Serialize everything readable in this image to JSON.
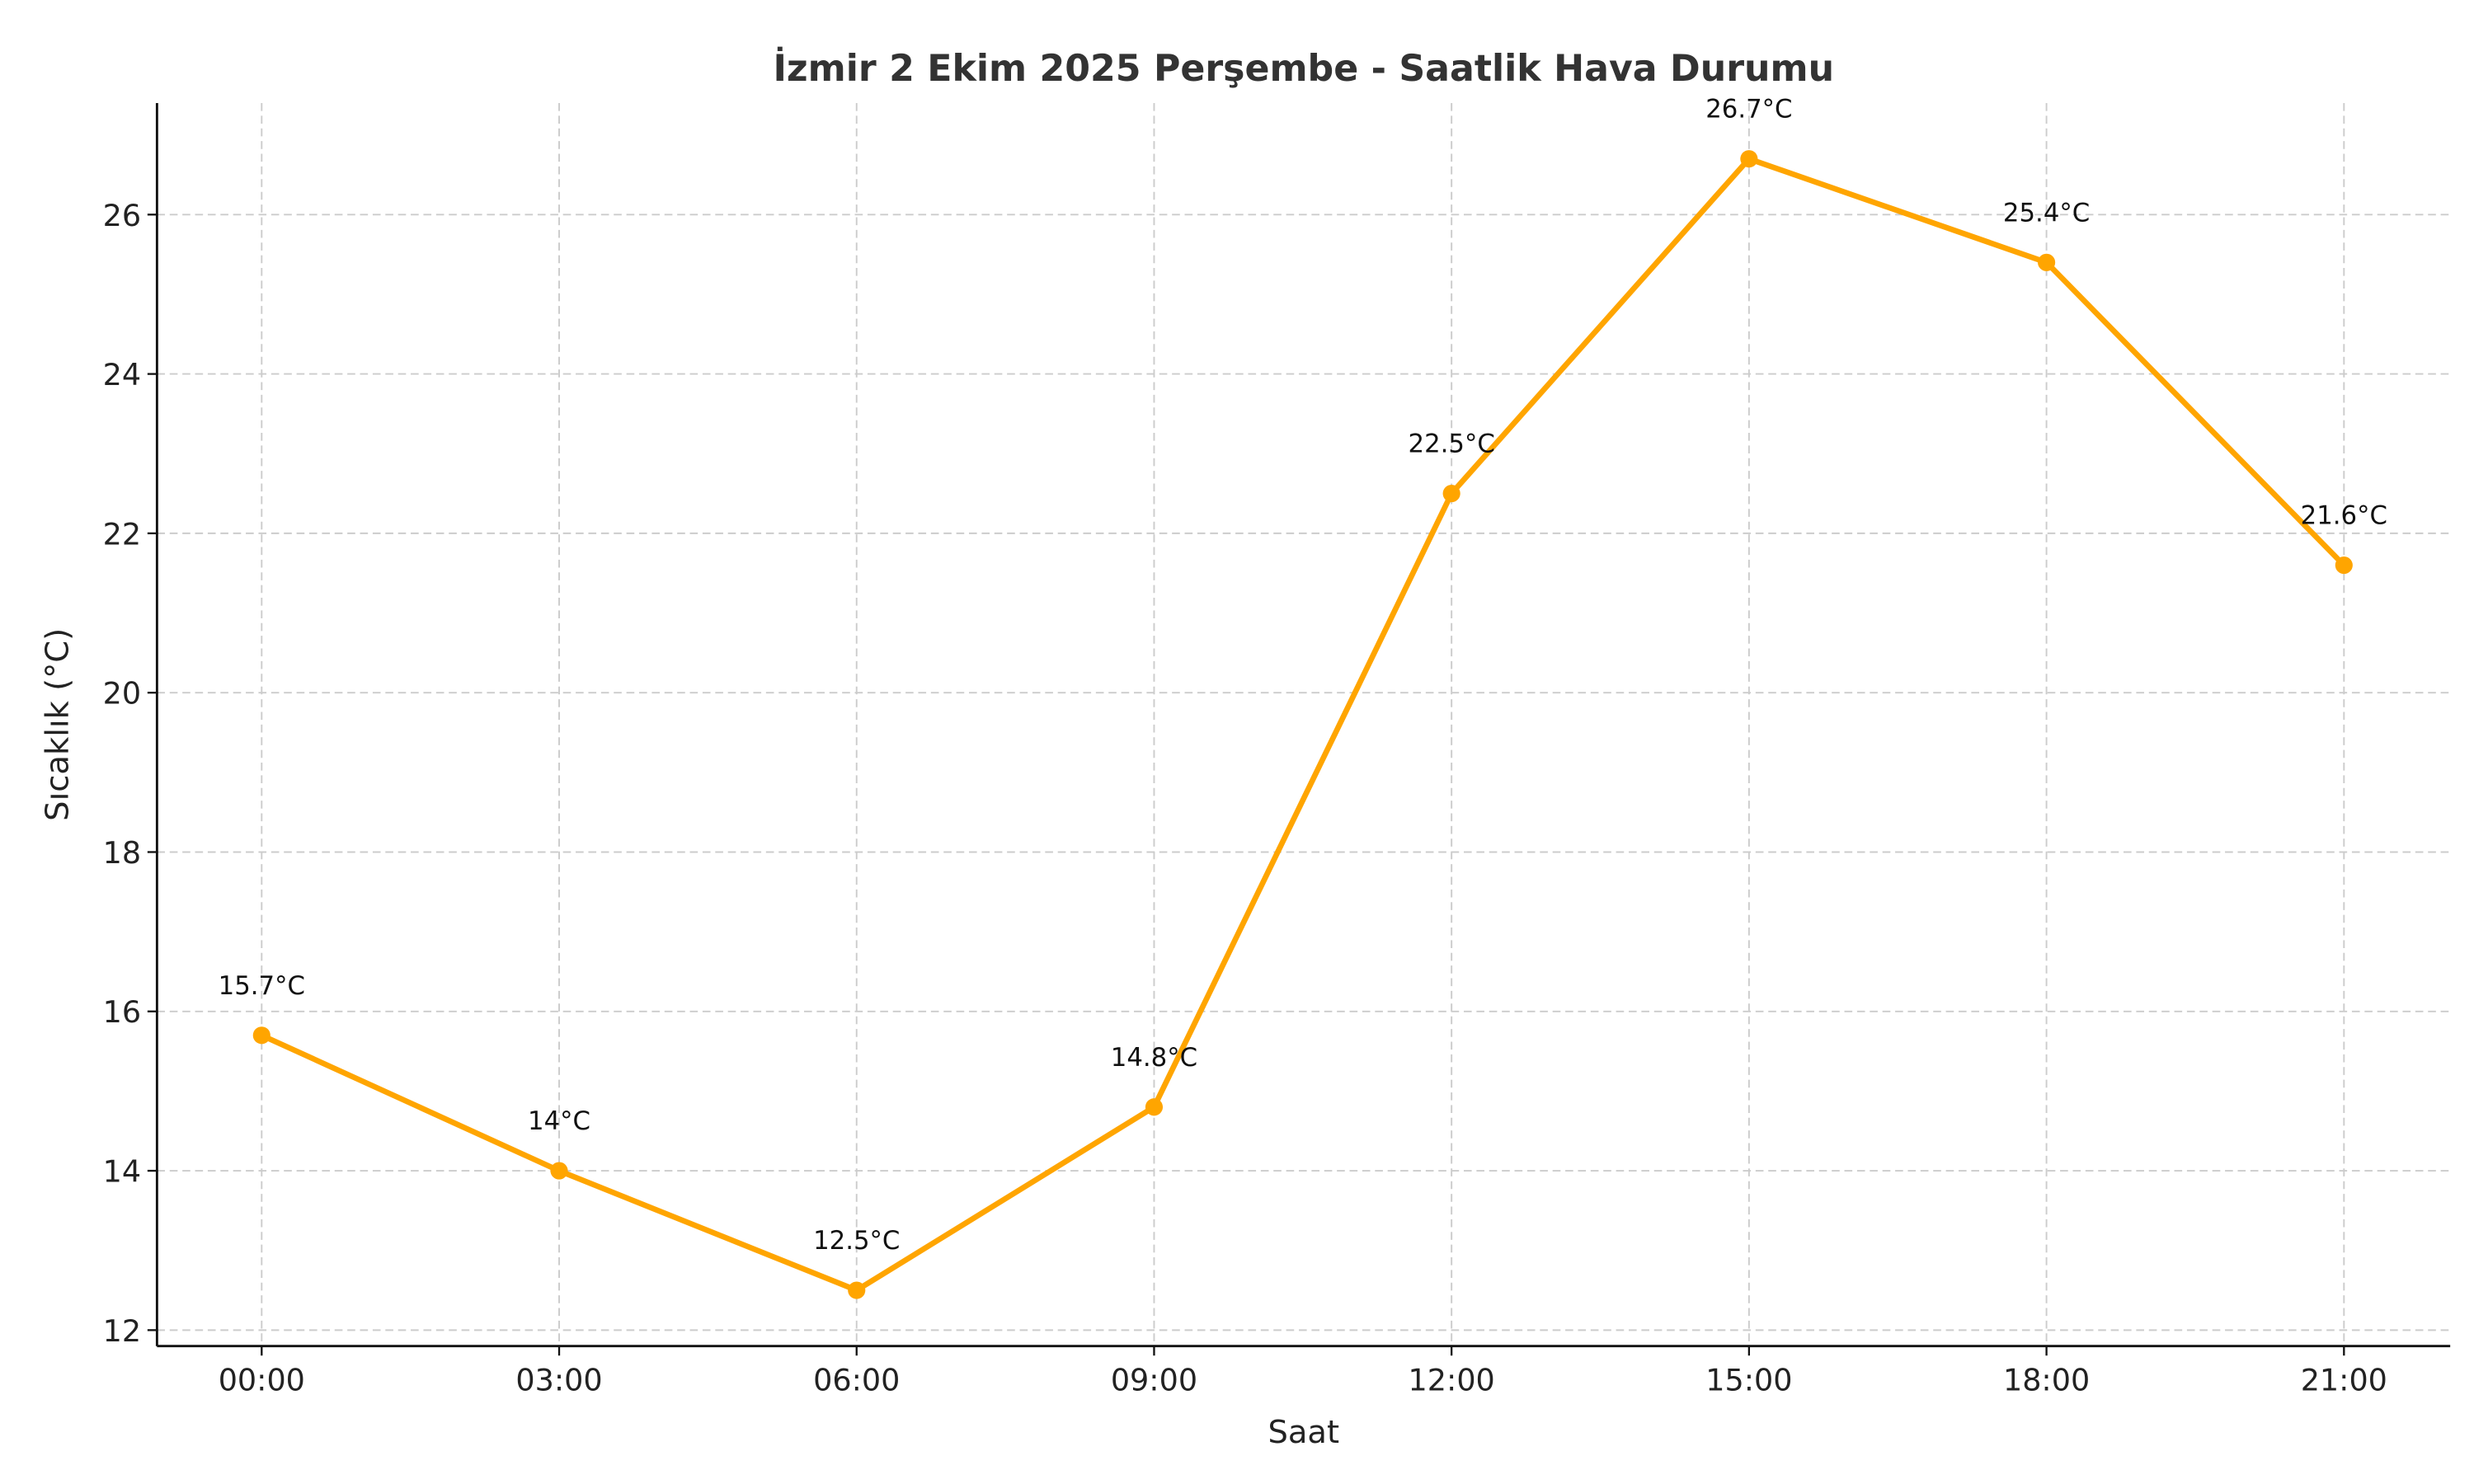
{
  "chart_data": {
    "type": "line",
    "title": "İzmir 2 Ekim 2025 Perşembe - Saatlik Hava Durumu",
    "xlabel": "Saat",
    "ylabel": "Sıcaklık (°C)",
    "categories": [
      "00:00",
      "03:00",
      "06:00",
      "09:00",
      "12:00",
      "15:00",
      "18:00",
      "21:00"
    ],
    "series": [
      {
        "values": [
          15.7,
          14,
          12.5,
          14.8,
          22.5,
          26.7,
          25.4,
          21.6
        ]
      }
    ],
    "data_labels": [
      "15.7°C",
      "14°C",
      "12.5°C",
      "14.8°C",
      "22.5°C",
      "26.7°C",
      "25.4°C",
      "21.6°C"
    ],
    "yticks": [
      12,
      14,
      16,
      18,
      20,
      22,
      24,
      26
    ],
    "ylim": [
      11.8,
      27.4
    ],
    "grid": true,
    "line_color": "#FFA500",
    "marker": "circle"
  }
}
